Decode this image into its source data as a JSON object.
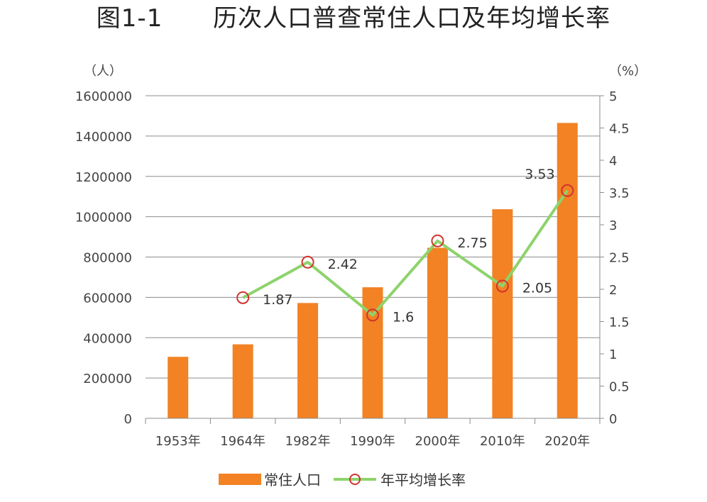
{
  "chart_data": {
    "type": "bar",
    "title": "图1-1      历次人口普查常住人口及年均增长率",
    "categories": [
      "1953年",
      "1964年",
      "1982年",
      "1990年",
      "2000年",
      "2010年",
      "2020年"
    ],
    "y_left": {
      "unit": "（人）",
      "range": [
        0,
        1600000
      ],
      "ticks": [
        "0",
        "200000",
        "400000",
        "600000",
        "800000",
        "1000000",
        "1200000",
        "1400000",
        "1600000"
      ]
    },
    "y_right": {
      "unit": "（%）",
      "range": [
        0,
        5
      ],
      "ticks": [
        "0",
        "0.5",
        "1",
        "1.5",
        "2",
        "2.5",
        "3",
        "3.5",
        "4",
        "4.5",
        "5"
      ]
    },
    "grid": true,
    "legend_placement": "bottom",
    "series": [
      {
        "name": "常住人口",
        "kind": "bar",
        "axis": "left",
        "color": "#F28224",
        "values": [
          305000,
          367000,
          572000,
          650000,
          846000,
          1037000,
          1465000
        ]
      },
      {
        "name": "年平均增长率",
        "kind": "line",
        "axis": "right",
        "color": "#8DD36B",
        "marker_color": "#D0342C",
        "values": [
          null,
          1.87,
          2.42,
          1.6,
          2.75,
          2.05,
          3.53
        ],
        "labels": [
          "",
          "1.87",
          "2.42",
          "1.6",
          "2.75",
          "2.05",
          "3.53"
        ]
      }
    ]
  }
}
